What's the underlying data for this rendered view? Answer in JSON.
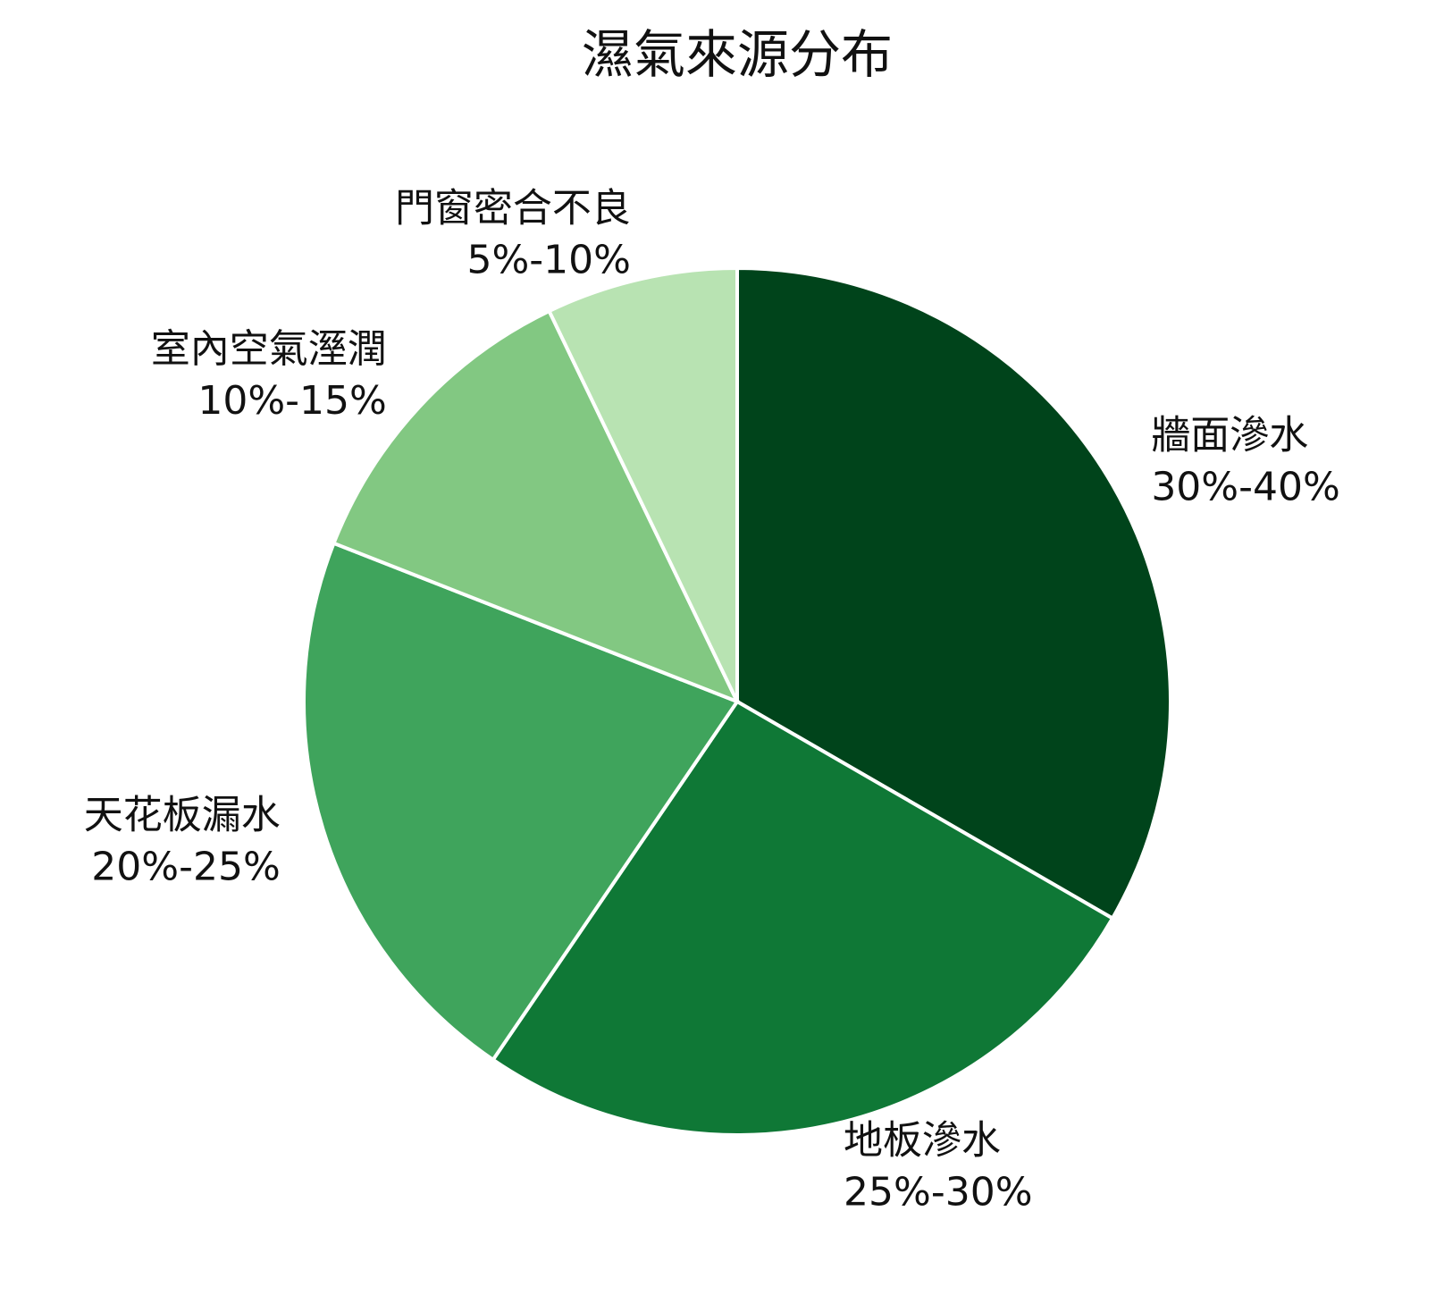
{
  "chart_data": {
    "type": "pie",
    "title": "濕氣來源分布",
    "categories": [
      "牆面滲水",
      "地板滲水",
      "天花板漏水",
      "室內空氣溼潤",
      "門窗密合不良"
    ],
    "values": [
      35,
      27.5,
      22.5,
      12.5,
      7.5
    ],
    "value_labels": [
      "30%-40%",
      "25%-30%",
      "20%-25%",
      "10%-15%",
      "5%-10%"
    ],
    "colors": [
      "#00441b",
      "#0f7836",
      "#3fa45c",
      "#82c882",
      "#b8e3b2"
    ]
  }
}
